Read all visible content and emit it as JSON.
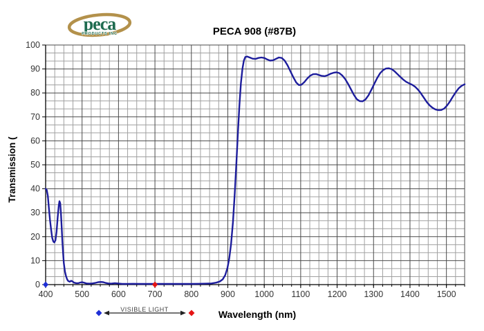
{
  "brand": {
    "name": "peca",
    "subtitle": "PRODUCTS INC",
    "text_color": "#1e6b4f",
    "swoosh_color": "#b3914b"
  },
  "chart_data": {
    "type": "line",
    "title": "PECA 908 (#87B)",
    "xlabel": "Wavelength (nm)",
    "ylabel": "Transmission (",
    "xlim": [
      400,
      1550
    ],
    "ylim": [
      0,
      100
    ],
    "x_ticks": [
      400,
      500,
      600,
      700,
      800,
      900,
      1000,
      1100,
      1200,
      1300,
      1400,
      1500
    ],
    "y_ticks": [
      0,
      10,
      20,
      30,
      40,
      50,
      60,
      70,
      80,
      90,
      100
    ],
    "x_minor_step": 25,
    "y_minor_divisions_per_major": 3,
    "grid": true,
    "legend_position": "none",
    "colors": {
      "curve": "#1d1d9c",
      "major_grid": "#4a4a4a",
      "minor_grid": "#a0a0a0",
      "axis": "#000000"
    },
    "series": [
      {
        "name": "PECA 908 (#87B) transmission %",
        "color": "#1d1d9c",
        "points": [
          [
            400,
            40
          ],
          [
            403,
            39.5
          ],
          [
            406,
            37
          ],
          [
            409,
            32
          ],
          [
            412,
            27
          ],
          [
            415,
            23
          ],
          [
            418,
            19.5
          ],
          [
            421,
            18
          ],
          [
            424,
            17.6
          ],
          [
            427,
            18.5
          ],
          [
            430,
            22
          ],
          [
            433,
            28
          ],
          [
            436,
            33
          ],
          [
            438,
            34.8
          ],
          [
            440,
            34
          ],
          [
            442,
            30
          ],
          [
            444,
            24
          ],
          [
            446,
            18
          ],
          [
            448,
            13
          ],
          [
            450,
            9
          ],
          [
            453,
            5.5
          ],
          [
            456,
            3.5
          ],
          [
            459,
            2.2
          ],
          [
            462,
            1.5
          ],
          [
            466,
            1.2
          ],
          [
            470,
            1.6
          ],
          [
            474,
            1.3
          ],
          [
            478,
            0.8
          ],
          [
            484,
            0.6
          ],
          [
            490,
            0.6
          ],
          [
            496,
            0.9
          ],
          [
            500,
            1.0
          ],
          [
            505,
            0.8
          ],
          [
            512,
            0.5
          ],
          [
            520,
            0.4
          ],
          [
            528,
            0.5
          ],
          [
            536,
            0.7
          ],
          [
            544,
            1.0
          ],
          [
            552,
            1.1
          ],
          [
            558,
            1.0
          ],
          [
            565,
            0.7
          ],
          [
            572,
            0.5
          ],
          [
            580,
            0.4
          ],
          [
            590,
            0.6
          ],
          [
            598,
            0.5
          ],
          [
            610,
            0.3
          ],
          [
            625,
            0.3
          ],
          [
            640,
            0.35
          ],
          [
            660,
            0.3
          ],
          [
            680,
            0.3
          ],
          [
            700,
            0.3
          ],
          [
            720,
            0.3
          ],
          [
            740,
            0.3
          ],
          [
            760,
            0.3
          ],
          [
            780,
            0.3
          ],
          [
            800,
            0.3
          ],
          [
            820,
            0.35
          ],
          [
            840,
            0.4
          ],
          [
            855,
            0.5
          ],
          [
            868,
            0.8
          ],
          [
            878,
            1.3
          ],
          [
            886,
            2.2
          ],
          [
            893,
            4
          ],
          [
            899,
            7
          ],
          [
            904,
            11
          ],
          [
            909,
            17
          ],
          [
            914,
            26
          ],
          [
            919,
            38
          ],
          [
            924,
            52
          ],
          [
            928,
            64
          ],
          [
            932,
            75
          ],
          [
            936,
            84
          ],
          [
            940,
            90
          ],
          [
            944,
            93.5
          ],
          [
            948,
            95
          ],
          [
            953,
            95.2
          ],
          [
            960,
            94.8
          ],
          [
            968,
            94.3
          ],
          [
            976,
            94.2
          ],
          [
            984,
            94.6
          ],
          [
            992,
            94.8
          ],
          [
            1000,
            94.6
          ],
          [
            1008,
            94
          ],
          [
            1016,
            93.5
          ],
          [
            1024,
            93.6
          ],
          [
            1032,
            94.2
          ],
          [
            1040,
            94.8
          ],
          [
            1048,
            94.6
          ],
          [
            1056,
            93.5
          ],
          [
            1064,
            91.5
          ],
          [
            1072,
            89
          ],
          [
            1080,
            86.5
          ],
          [
            1088,
            84.3
          ],
          [
            1095,
            83.3
          ],
          [
            1102,
            83.4
          ],
          [
            1110,
            84.5
          ],
          [
            1118,
            86
          ],
          [
            1126,
            87.2
          ],
          [
            1134,
            87.8
          ],
          [
            1142,
            87.9
          ],
          [
            1150,
            87.5
          ],
          [
            1158,
            87.1
          ],
          [
            1166,
            87
          ],
          [
            1174,
            87.4
          ],
          [
            1182,
            88
          ],
          [
            1190,
            88.4
          ],
          [
            1198,
            88.6
          ],
          [
            1206,
            88.3
          ],
          [
            1214,
            87.3
          ],
          [
            1222,
            85.8
          ],
          [
            1230,
            83.8
          ],
          [
            1238,
            81.5
          ],
          [
            1246,
            79.2
          ],
          [
            1254,
            77.4
          ],
          [
            1262,
            76.6
          ],
          [
            1270,
            76.5
          ],
          [
            1278,
            77.3
          ],
          [
            1286,
            79
          ],
          [
            1294,
            81.3
          ],
          [
            1302,
            83.8
          ],
          [
            1310,
            86.2
          ],
          [
            1318,
            88.2
          ],
          [
            1326,
            89.5
          ],
          [
            1334,
            90.2
          ],
          [
            1342,
            90.3
          ],
          [
            1350,
            89.9
          ],
          [
            1358,
            89
          ],
          [
            1366,
            87.8
          ],
          [
            1374,
            86.6
          ],
          [
            1382,
            85.5
          ],
          [
            1390,
            84.6
          ],
          [
            1398,
            84
          ],
          [
            1406,
            83.4
          ],
          [
            1414,
            82.6
          ],
          [
            1422,
            81.4
          ],
          [
            1430,
            79.8
          ],
          [
            1438,
            78
          ],
          [
            1446,
            76.2
          ],
          [
            1454,
            74.8
          ],
          [
            1462,
            73.8
          ],
          [
            1470,
            73.1
          ],
          [
            1478,
            72.8
          ],
          [
            1486,
            72.9
          ],
          [
            1494,
            73.5
          ],
          [
            1502,
            74.8
          ],
          [
            1510,
            76.5
          ],
          [
            1518,
            78.5
          ],
          [
            1526,
            80.4
          ],
          [
            1534,
            82
          ],
          [
            1542,
            83
          ],
          [
            1550,
            83.6
          ]
        ]
      }
    ],
    "axis_markers": [
      {
        "x": 400,
        "y": 0,
        "shape": "diamond",
        "color": "#1f2fd6",
        "name": "visible-light-start"
      },
      {
        "x": 700,
        "y": 0,
        "shape": "diamond",
        "color": "#e51414",
        "name": "visible-light-end"
      }
    ],
    "annotation": {
      "label": "VISIBLE LIGHT",
      "left_marker_color": "#1f2fd6",
      "right_marker_color": "#e51414"
    }
  }
}
